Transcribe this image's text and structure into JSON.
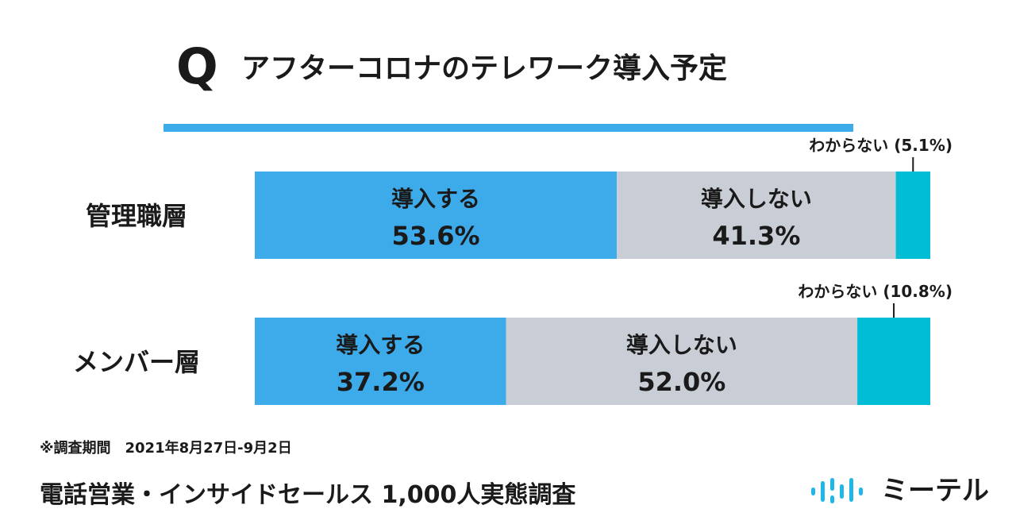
{
  "title": {
    "q": "Q",
    "text": "アフターコロナのテレワーク導入予定"
  },
  "chart_data": {
    "type": "bar",
    "orientation": "horizontal",
    "stacked": true,
    "normalized_percent": true,
    "categories": [
      "管理職層",
      "メンバー層"
    ],
    "series": [
      {
        "name": "導入する",
        "values": [
          53.6,
          37.2
        ],
        "labels": [
          "53.6%",
          "37.2%"
        ]
      },
      {
        "name": "導入しない",
        "values": [
          41.3,
          52.0
        ],
        "labels": [
          "41.3%",
          "52.0%"
        ]
      },
      {
        "name": "わからない",
        "values": [
          5.1,
          10.8
        ],
        "labels": [
          "(5.1%)",
          "(10.8%)"
        ]
      }
    ],
    "colors": [
      "#3daaea",
      "#c9ced6",
      "#00bcd4"
    ],
    "xlim": [
      0,
      100
    ],
    "grid": false,
    "legend": "none"
  },
  "footer": {
    "note": "※調査期間　2021年8月27日-9月2日",
    "title": "電話営業・インサイドセールス 1,000人実態調査",
    "logo_text": "ミーテル",
    "logo_color": "#1fb6e8"
  }
}
